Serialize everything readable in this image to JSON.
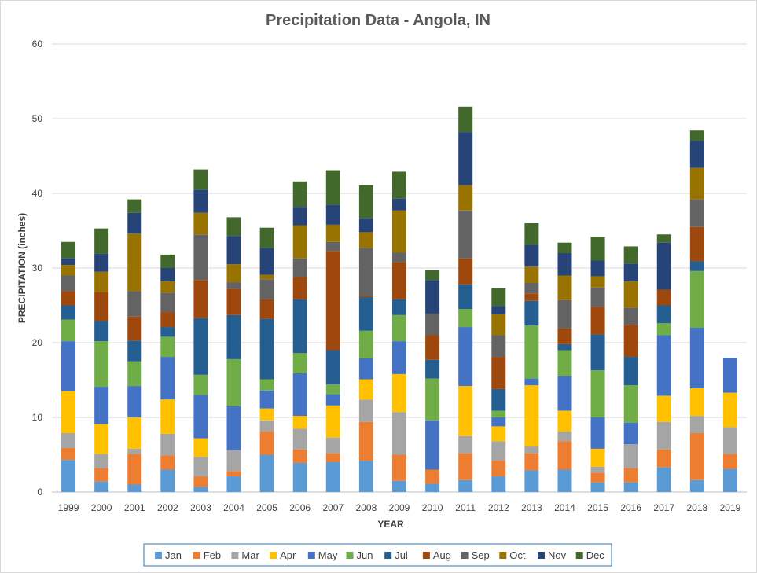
{
  "chart_data": {
    "type": "bar",
    "stacked": true,
    "title": "Precipitation Data - Angola, IN",
    "xlabel": "YEAR",
    "ylabel": "PRECIPITATION (inches)",
    "ylim": [
      0,
      60
    ],
    "yticks": [
      0,
      10,
      20,
      30,
      40,
      50,
      60
    ],
    "grid": true,
    "legend_position": "bottom",
    "categories": [
      "1999",
      "2000",
      "2001",
      "2002",
      "2003",
      "2004",
      "2005",
      "2006",
      "2007",
      "2008",
      "2009",
      "2010",
      "2011",
      "2012",
      "2013",
      "2014",
      "2015",
      "2016",
      "2017",
      "2018",
      "2019"
    ],
    "series": [
      {
        "name": "Jan",
        "color": "#5B9BD5",
        "values": [
          4.3,
          1.4,
          1.0,
          3.0,
          0.7,
          2.1,
          5.0,
          3.9,
          4.0,
          4.2,
          1.5,
          1.1,
          1.6,
          2.1,
          2.9,
          3.0,
          1.3,
          1.3,
          3.3,
          1.6,
          3.1
        ]
      },
      {
        "name": "Feb",
        "color": "#ED7D31",
        "values": [
          1.6,
          1.8,
          4.1,
          1.9,
          1.4,
          0.7,
          3.1,
          1.8,
          1.2,
          5.2,
          3.5,
          1.9,
          3.6,
          2.1,
          2.3,
          3.8,
          1.3,
          1.9,
          2.4,
          6.3,
          2.0
        ]
      },
      {
        "name": "Mar",
        "color": "#A5A5A5",
        "values": [
          2.0,
          1.9,
          0.7,
          2.9,
          2.6,
          2.8,
          1.5,
          2.8,
          2.1,
          3.0,
          5.7,
          0.0,
          2.3,
          2.6,
          0.9,
          1.3,
          0.8,
          3.2,
          3.7,
          2.3,
          3.6
        ]
      },
      {
        "name": "Apr",
        "color": "#FFC000",
        "values": [
          5.6,
          4.0,
          4.2,
          4.6,
          2.5,
          0.0,
          1.6,
          1.7,
          4.3,
          2.7,
          5.1,
          0.0,
          6.7,
          2.0,
          8.2,
          2.8,
          2.4,
          0.0,
          3.5,
          3.7,
          4.6
        ]
      },
      {
        "name": "May",
        "color": "#4472C4",
        "values": [
          6.7,
          5.0,
          4.2,
          5.7,
          5.8,
          5.9,
          2.4,
          5.7,
          1.5,
          2.8,
          4.4,
          6.6,
          7.9,
          1.2,
          0.9,
          4.6,
          4.2,
          2.9,
          8.1,
          8.1,
          4.7
        ]
      },
      {
        "name": "Jun",
        "color": "#70AD47",
        "values": [
          2.9,
          6.1,
          3.3,
          2.7,
          2.7,
          6.3,
          1.5,
          2.7,
          1.3,
          3.7,
          3.5,
          5.6,
          2.4,
          0.9,
          7.1,
          3.5,
          6.3,
          5.0,
          1.6,
          7.6,
          0.0
        ]
      },
      {
        "name": "Jul",
        "color": "#255E91",
        "values": [
          1.9,
          2.7,
          2.8,
          1.3,
          7.6,
          5.9,
          8.1,
          7.2,
          4.6,
          4.5,
          2.1,
          2.5,
          3.3,
          2.9,
          3.3,
          0.8,
          4.8,
          3.8,
          2.4,
          1.3,
          0.0
        ]
      },
      {
        "name": "Aug",
        "color": "#9E480E",
        "values": [
          1.9,
          3.9,
          3.2,
          2.0,
          5.1,
          3.5,
          2.6,
          3.0,
          13.3,
          0.2,
          5.0,
          3.3,
          3.5,
          4.3,
          1.0,
          2.1,
          3.7,
          4.3,
          2.1,
          4.6,
          0.0
        ]
      },
      {
        "name": "Sep",
        "color": "#636363",
        "values": [
          2.1,
          0.0,
          3.4,
          2.6,
          6.1,
          0.9,
          2.7,
          2.5,
          1.2,
          6.4,
          1.3,
          2.9,
          6.4,
          2.9,
          1.4,
          3.8,
          2.6,
          2.3,
          0.0,
          3.7,
          0.0
        ]
      },
      {
        "name": "Oct",
        "color": "#997300",
        "values": [
          1.4,
          2.7,
          7.7,
          1.5,
          2.9,
          2.4,
          0.6,
          4.4,
          2.3,
          2.1,
          5.6,
          0.0,
          3.4,
          2.8,
          2.2,
          3.3,
          1.5,
          3.5,
          0.0,
          4.2,
          0.0
        ]
      },
      {
        "name": "Nov",
        "color": "#264478",
        "values": [
          0.9,
          2.4,
          2.8,
          1.8,
          3.1,
          3.8,
          3.6,
          2.5,
          2.7,
          1.9,
          1.6,
          4.5,
          7.1,
          1.1,
          2.9,
          3.0,
          2.1,
          2.4,
          6.3,
          3.6,
          0.0
        ]
      },
      {
        "name": "Dec",
        "color": "#43682B",
        "values": [
          2.2,
          3.4,
          1.8,
          1.8,
          2.7,
          2.5,
          2.7,
          3.4,
          4.6,
          4.4,
          3.6,
          1.3,
          3.4,
          2.4,
          2.9,
          1.4,
          3.2,
          2.3,
          1.1,
          1.4,
          0.0
        ]
      }
    ]
  }
}
